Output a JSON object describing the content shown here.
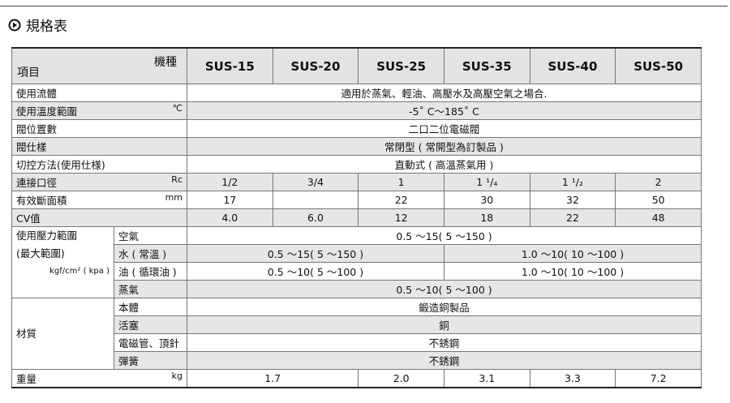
{
  "header": {
    "title": "規格表"
  },
  "table": {
    "corner_top": "機種",
    "corner_bottom": "項目",
    "models": [
      "SUS-15",
      "SUS-20",
      "SUS-25",
      "SUS-35",
      "SUS-40",
      "SUS-50"
    ],
    "rows": [
      {
        "label": "使用流體",
        "cells": [
          "適用於蒸氣、輕油、高壓水及高壓空氣之場合."
        ]
      },
      {
        "label": "使用溫度範圍",
        "unit": "℃",
        "cells": [
          "-5˚ C～185˚ C"
        ]
      },
      {
        "label": "閥位置數",
        "cells": [
          "二口二位電磁閥"
        ]
      },
      {
        "label": "閥仕樣",
        "cells": [
          "常閉型 ( 常開型為訂製品 )"
        ]
      },
      {
        "label": "切控方法(使用仕様)",
        "cells": [
          "直動式 ( 高溫蒸氣用 )"
        ]
      },
      {
        "label": "連接口徑",
        "unit": "Rc",
        "cells": [
          "1/2",
          "3/4",
          "1",
          "1 ¹/₄",
          "1 ¹/₂",
          "2"
        ]
      },
      {
        "label": "有效斷面積",
        "unit": "mm",
        "cells": [
          "17",
          null,
          "22",
          "30",
          "32",
          "50"
        ]
      },
      {
        "label": "CV值",
        "cells": [
          "4.0",
          "6.0",
          "12",
          "18",
          "22",
          "48"
        ]
      }
    ],
    "pressure": {
      "label": [
        "使用壓力範圍",
        "(最大範圍)"
      ],
      "unit": "kgf/cm² ( kpa )",
      "rows": [
        {
          "sub": "空氣",
          "cells": [
            "0.5 ～15( 5 ～150 )"
          ]
        },
        {
          "sub": "水 ( 常溫 )",
          "cells": [
            "0.5 ～15( 5 ～150 )",
            "1.0 ～10( 10 ～100 )"
          ]
        },
        {
          "sub": "油 ( 循環油 )",
          "cells": [
            "0.5 ～10( 5 ～100 )",
            "1.0 ～10( 10 ～100 )"
          ]
        },
        {
          "sub": "蒸氣",
          "cells": [
            "0.5 ～10( 5 ～100 )"
          ]
        }
      ]
    },
    "material": {
      "label": "材質",
      "rows": [
        {
          "sub": "本體",
          "cells": [
            "鍛造銅製品"
          ]
        },
        {
          "sub": "活塞",
          "cells": [
            "銅"
          ]
        },
        {
          "sub": "電磁管、頂針",
          "cells": [
            "不銹鋼"
          ]
        },
        {
          "sub": "彈簧",
          "cells": [
            "不銹鋼"
          ]
        }
      ]
    },
    "weight": {
      "label": "重量",
      "unit": "kg",
      "cells": [
        "1.7",
        "2.0",
        "3.1",
        "3.3",
        "7.2"
      ]
    }
  }
}
